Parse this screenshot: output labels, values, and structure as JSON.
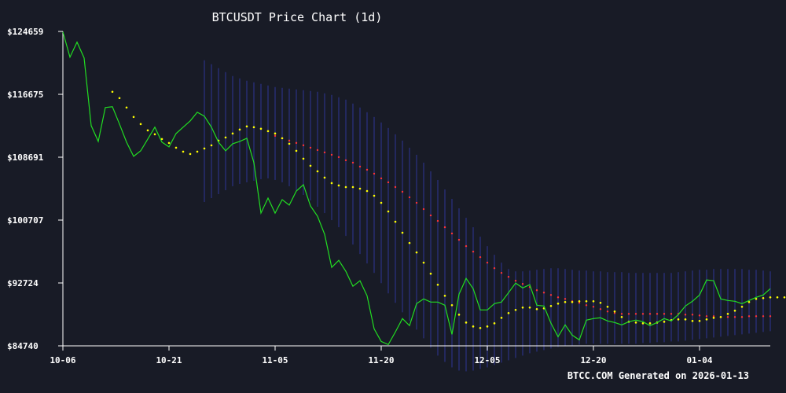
{
  "chart_data": {
    "type": "line",
    "title": "BTCUSDT Price Chart (1d)",
    "footer": "BTCC.COM Generated on 2026-01-13",
    "xlabel": "",
    "ylabel": "",
    "x_start": "2025-10-06",
    "x_tick_labels": [
      "10-06",
      "10-21",
      "11-05",
      "11-20",
      "12-05",
      "12-20",
      "01-04"
    ],
    "x_tick_days": [
      0,
      15,
      30,
      45,
      60,
      75,
      90
    ],
    "xlim_days": [
      0,
      100
    ],
    "y_tick_labels": [
      "$124659",
      "$116675",
      "$108691",
      "$100707",
      "$92724",
      "$84740"
    ],
    "y_tick_values": [
      124659,
      116675,
      108691,
      100707,
      92724,
      84740
    ],
    "ylim": [
      84740,
      124659
    ],
    "colors": {
      "background": "#181b26",
      "price": "#22dd22",
      "ma_short": "#ffff00",
      "ma_long": "#ff3333",
      "band": "#23285e",
      "axis": "#ffffff"
    },
    "series": [
      {
        "key": "price",
        "values": [
          124600,
          121400,
          123300,
          121300,
          112700,
          110700,
          115000,
          115100,
          112900,
          110600,
          108800,
          109500,
          111000,
          112500,
          110600,
          110000,
          111700,
          112500,
          113300,
          114400,
          113900,
          112500,
          110600,
          109500,
          110400,
          110700,
          111100,
          108000,
          101600,
          103500,
          101600,
          103300,
          102600,
          104400,
          105200,
          102500,
          101200,
          98900,
          94700,
          95600,
          94200,
          92300,
          93000,
          91100,
          86900,
          85300,
          84900,
          86500,
          88200,
          87300,
          90100,
          90700,
          90300,
          90300,
          89900,
          86200,
          91300,
          93300,
          92000,
          89300,
          89300,
          90100,
          90300,
          91500,
          92700,
          92100,
          92500,
          89900,
          89800,
          87600,
          85900,
          87400,
          86100,
          85500,
          88000,
          88200,
          88300,
          87900,
          87700,
          87400,
          87800,
          88000,
          87800,
          87300,
          87700,
          88200,
          87900,
          88700,
          89800,
          90400,
          91200,
          93100,
          93000,
          90700,
          90500,
          90400,
          90100,
          90500,
          90900,
          91200,
          92000
        ]
      },
      {
        "key": "ma_short",
        "start_day": 7,
        "values": [
          117000,
          116200,
          115000,
          113800,
          112900,
          112100,
          111600,
          111000,
          110500,
          109900,
          109400,
          109100,
          109400,
          109800,
          110200,
          110800,
          111200,
          111700,
          112200,
          112600,
          112500,
          112300,
          112000,
          111700,
          111100,
          110400,
          109500,
          108500,
          107600,
          106900,
          106100,
          105400,
          105100,
          104900,
          104900,
          104700,
          104400,
          103800,
          102900,
          101800,
          100500,
          99100,
          97800,
          96600,
          95300,
          93900,
          92500,
          91100,
          89900,
          88700,
          87700,
          87200,
          87000,
          87200,
          87600,
          88300,
          88900,
          89300,
          89600,
          89600,
          89400,
          89500,
          89800,
          90100,
          90300,
          90300,
          90400,
          90400,
          90400,
          90200,
          89700,
          89100,
          88400,
          87800,
          87700,
          87600,
          87600,
          87700,
          87800,
          88000,
          88100,
          88100,
          87900,
          87900,
          88100,
          88300,
          88400,
          88800,
          89200,
          89700,
          90300,
          90700,
          90800,
          90900,
          90900,
          90900,
          90900
        ]
      },
      {
        "key": "ma_long",
        "start_day": 30,
        "values": [
          111400,
          111100,
          110800,
          110500,
          110200,
          109900,
          109600,
          109300,
          109000,
          108700,
          108300,
          108000,
          107500,
          107100,
          106600,
          106000,
          105500,
          104900,
          104300,
          103600,
          102900,
          102100,
          101300,
          100600,
          99800,
          99000,
          98200,
          97400,
          96700,
          96000,
          95300,
          94600,
          94000,
          93500,
          93000,
          92600,
          92200,
          91800,
          91500,
          91200,
          90900,
          90700,
          90400,
          90200,
          89900,
          89700,
          89400,
          89100,
          88900,
          88800,
          88800,
          88800,
          88800,
          88800,
          88800,
          88800,
          88800,
          88800,
          88700,
          88700,
          88600,
          88500,
          88500,
          88400,
          88400,
          88400,
          88400,
          88500,
          88500,
          88500,
          88500
        ]
      },
      {
        "key": "band",
        "start_day": 20,
        "upper": [
          121000,
          120500,
          120000,
          119500,
          119000,
          118700,
          118400,
          118200,
          118000,
          117800,
          117600,
          117500,
          117400,
          117300,
          117200,
          117100,
          117000,
          116800,
          116600,
          116300,
          116000,
          115500,
          115000,
          114400,
          113800,
          113100,
          112400,
          111600,
          110800,
          109900,
          109000,
          108000,
          106900,
          105800,
          104600,
          103400,
          102200,
          101000,
          99800,
          98600,
          97400,
          96300,
          95300,
          94500,
          94200,
          94200,
          94300,
          94400,
          94500,
          94600,
          94600,
          94500,
          94400,
          94300,
          94300,
          94200,
          94200,
          94100,
          94100,
          94100,
          94000,
          94000,
          94000,
          94000,
          94000,
          94000,
          94000,
          94100,
          94200,
          94300,
          94400,
          94400,
          94500,
          94500,
          94500,
          94500,
          94500,
          94400,
          94400,
          94300,
          94200
        ],
        "lower": [
          103000,
          103500,
          104000,
          104500,
          105000,
          105300,
          105500,
          105700,
          105900,
          106000,
          105800,
          105500,
          105000,
          104500,
          103900,
          103200,
          102400,
          101600,
          100700,
          99800,
          98700,
          97600,
          96400,
          95200,
          94000,
          92700,
          91400,
          90200,
          89000,
          87900,
          86800,
          85700,
          84500,
          83500,
          82700,
          82000,
          81600,
          81500,
          81600,
          81800,
          82000,
          82300,
          82600,
          82900,
          83200,
          83500,
          83800,
          84000,
          84200,
          84400,
          84600,
          84700,
          84800,
          84900,
          85000,
          85000,
          85000,
          85000,
          85000,
          85000,
          85000,
          85000,
          85100,
          85100,
          85200,
          85200,
          85300,
          85300,
          85400,
          85500,
          85600,
          85700,
          85800,
          85900,
          86000,
          86100,
          86200,
          86300,
          86400,
          86500,
          86600
        ]
      }
    ]
  }
}
